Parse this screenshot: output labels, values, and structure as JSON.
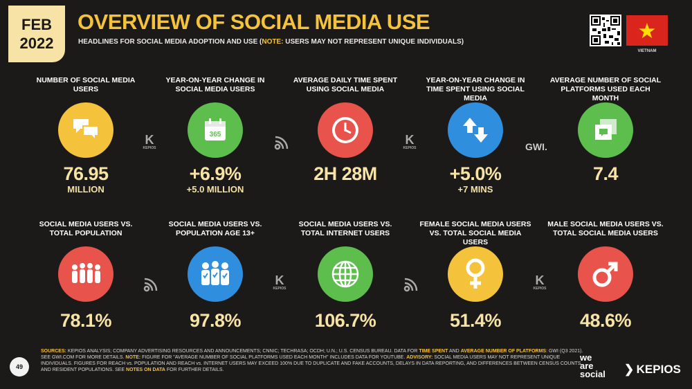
{
  "header": {
    "month": "FEB",
    "year": "2022",
    "title": "OVERVIEW OF SOCIAL MEDIA USE",
    "subtitle_pre": "HEADLINES FOR SOCIAL MEDIA ADOPTION AND USE (",
    "subtitle_note": "NOTE:",
    "subtitle_post": " USERS MAY NOT REPRESENT UNIQUE INDIVIDUALS)",
    "country": "VIETNAM"
  },
  "colors": {
    "accent": "#f4c33b",
    "value": "#f7e3a6",
    "background": "#1b1a18",
    "yellow": "#f4c33b",
    "green": "#5dbe4e",
    "red": "#e8544b",
    "blue": "#2f8fde",
    "flag": "#da251d"
  },
  "stats_row1": [
    {
      "label": "NUMBER OF SOCIAL MEDIA USERS",
      "value": "76.95",
      "sub": "MILLION",
      "icon": "speech-bubbles-icon",
      "color": "#f4c33b"
    },
    {
      "label": "YEAR-ON-YEAR CHANGE IN SOCIAL MEDIA USERS",
      "value": "+6.9%",
      "sub": "+5.0 MILLION",
      "icon": "calendar-icon",
      "color": "#5dbe4e"
    },
    {
      "label": "AVERAGE DAILY TIME SPENT USING SOCIAL MEDIA",
      "value": "2H 28M",
      "sub": "",
      "icon": "clock-icon",
      "color": "#e8544b"
    },
    {
      "label": "YEAR-ON-YEAR CHANGE IN TIME SPENT USING SOCIAL MEDIA",
      "value": "+5.0%",
      "sub": "+7 MINS",
      "icon": "up-down-arrows-icon",
      "color": "#2f8fde"
    },
    {
      "label": "AVERAGE NUMBER OF SOCIAL PLATFORMS USED EACH MONTH",
      "value": "7.4",
      "sub": "",
      "icon": "stacked-windows-icon",
      "color": "#5dbe4e"
    }
  ],
  "stats_row2": [
    {
      "label": "SOCIAL MEDIA USERS vs. TOTAL POPULATION",
      "value": "78.1%",
      "icon": "people-group-icon",
      "color": "#e8544b"
    },
    {
      "label": "SOCIAL MEDIA USERS vs. POPULATION AGE 13+",
      "value": "97.8%",
      "icon": "people-checked-icon",
      "color": "#2f8fde"
    },
    {
      "label": "SOCIAL MEDIA USERS vs. TOTAL INTERNET USERS",
      "value": "106.7%",
      "icon": "globe-icon",
      "color": "#5dbe4e"
    },
    {
      "label": "FEMALE SOCIAL MEDIA USERS vs. TOTAL SOCIAL MEDIA USERS",
      "value": "51.4%",
      "icon": "female-symbol-icon",
      "color": "#f4c33b"
    },
    {
      "label": "MALE SOCIAL MEDIA USERS vs. TOTAL SOCIAL MEDIA USERS",
      "value": "48.6%",
      "icon": "male-symbol-icon",
      "color": "#e8544b"
    }
  ],
  "logos": {
    "kepios_small": "KEPIOS",
    "gwi": "GWI."
  },
  "footer": {
    "sources_label": "SOURCES:",
    "text_1": " KEPIOS ANALYSIS; COMPANY ADVERTISING RESOURCES AND ANNOUNCEMENTS; CNNIC; TECHRASA; OCDH; U.N.; U.S. CENSUS BUREAU. DATA FOR ",
    "time_spent": "TIME SPENT",
    "text_2": " AND ",
    "avg_number": "AVERAGE NUMBER OF PLATFORMS",
    "text_3": ": GWI (Q3 2021). SEE GWI.COM FOR MORE DETAILS. ",
    "note_label": "NOTE:",
    "text_4": " FIGURE FOR \"AVERAGE NUMBER OF SOCIAL PLATFORMS USED EACH MONTH\" INCLUDES DATA FOR YOUTUBE. ",
    "advisory_label": "ADVISORY:",
    "text_5": " SOCIAL MEDIA USERS MAY NOT REPRESENT UNIQUE INDIVIDUALS. FIGURES FOR REACH vs. POPULATION AND REACH vs. INTERNET USERS MAY EXCEED 100% DUE TO DUPLICATE AND FAKE ACCOUNTS, DELAYS IN DATA REPORTING, AND DIFFERENCES BETWEEN CENSUS COUNTS AND RESIDENT POPULATIONS. SEE ",
    "notes_on_data": "NOTES ON DATA",
    "text_6": " FOR FURTHER DETAILS.",
    "page_number": "49",
    "brand_we": "we",
    "brand_are": "are",
    "brand_social": "social",
    "brand_kepios": "KEPIOS"
  }
}
